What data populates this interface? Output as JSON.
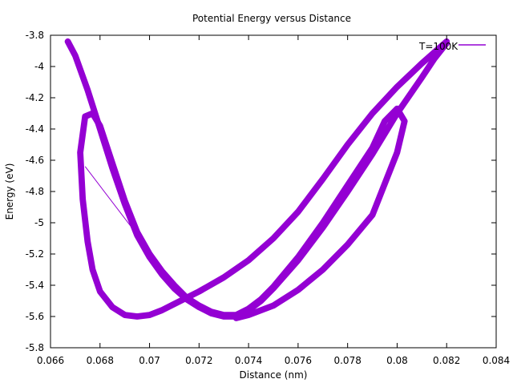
{
  "chart_data": {
    "type": "line",
    "title": "Potential Energy versus Distance",
    "xlabel": "Distance (nm)",
    "ylabel": "Energy (eV)",
    "xlim": [
      0.066,
      0.084
    ],
    "ylim": [
      -5.8,
      -3.8
    ],
    "x_ticks": [
      0.066,
      0.068,
      0.07,
      0.072,
      0.074,
      0.076,
      0.078,
      0.08,
      0.082,
      0.084
    ],
    "y_ticks": [
      -5.8,
      -5.6,
      -5.4,
      -5.2,
      -5.0,
      -4.8,
      -4.6,
      -4.4,
      -4.2,
      -4.0,
      -3.8
    ],
    "x_tick_labels": [
      "0.066",
      "0.068",
      "0.07",
      "0.072",
      "0.074",
      "0.076",
      "0.078",
      "0.08",
      "0.082",
      "0.084"
    ],
    "y_tick_labels": [
      "-5.8",
      "-5.6",
      "-5.4",
      "-5.2",
      "-5",
      "-4.8",
      "-4.6",
      "-4.4",
      "-4.2",
      "-4",
      "-3.8"
    ],
    "grid": false,
    "legend_position": "top-right",
    "series": [
      {
        "name": "T=100K",
        "color": "#9400d3",
        "band_width": 0.04,
        "loops": [
          {
            "points": [
              [
                0.0667,
                -3.84
              ],
              [
                0.067,
                -3.93
              ],
              [
                0.0675,
                -4.15
              ],
              [
                0.068,
                -4.4
              ],
              [
                0.0685,
                -4.65
              ],
              [
                0.069,
                -4.88
              ],
              [
                0.0695,
                -5.08
              ],
              [
                0.07,
                -5.22
              ],
              [
                0.0705,
                -5.33
              ],
              [
                0.071,
                -5.42
              ],
              [
                0.0715,
                -5.49
              ],
              [
                0.072,
                -5.54
              ],
              [
                0.0725,
                -5.58
              ],
              [
                0.073,
                -5.6
              ],
              [
                0.0735,
                -5.6
              ],
              [
                0.074,
                -5.56
              ],
              [
                0.0745,
                -5.5
              ],
              [
                0.075,
                -5.42
              ],
              [
                0.076,
                -5.24
              ],
              [
                0.077,
                -5.03
              ],
              [
                0.078,
                -4.8
              ],
              [
                0.079,
                -4.56
              ],
              [
                0.08,
                -4.3
              ],
              [
                0.081,
                -4.07
              ],
              [
                0.0815,
                -3.95
              ],
              [
                0.082,
                -3.85
              ]
            ]
          },
          {
            "points": [
              [
                0.082,
                -3.84
              ],
              [
                0.081,
                -3.98
              ],
              [
                0.08,
                -4.13
              ],
              [
                0.079,
                -4.3
              ],
              [
                0.078,
                -4.5
              ],
              [
                0.077,
                -4.72
              ],
              [
                0.076,
                -4.93
              ],
              [
                0.075,
                -5.1
              ],
              [
                0.074,
                -5.24
              ],
              [
                0.073,
                -5.35
              ],
              [
                0.072,
                -5.44
              ],
              [
                0.071,
                -5.52
              ],
              [
                0.0705,
                -5.56
              ],
              [
                0.07,
                -5.59
              ],
              [
                0.0695,
                -5.6
              ],
              [
                0.069,
                -5.59
              ],
              [
                0.0685,
                -5.54
              ],
              [
                0.068,
                -5.44
              ],
              [
                0.0677,
                -5.3
              ],
              [
                0.0675,
                -5.12
              ],
              [
                0.0673,
                -4.85
              ],
              [
                0.0672,
                -4.55
              ],
              [
                0.0674,
                -4.32
              ],
              [
                0.0677,
                -4.3
              ],
              [
                0.068,
                -4.38
              ],
              [
                0.0685,
                -4.62
              ],
              [
                0.069,
                -4.86
              ],
              [
                0.0695,
                -5.06
              ],
              [
                0.07,
                -5.2
              ],
              [
                0.0705,
                -5.31
              ],
              [
                0.071,
                -5.4
              ],
              [
                0.0715,
                -5.48
              ],
              [
                0.072,
                -5.53
              ],
              [
                0.0725,
                -5.57
              ],
              [
                0.073,
                -5.59
              ],
              [
                0.0735,
                -5.59
              ],
              [
                0.074,
                -5.55
              ],
              [
                0.0745,
                -5.49
              ],
              [
                0.075,
                -5.41
              ],
              [
                0.076,
                -5.22
              ],
              [
                0.077,
                -5.0
              ],
              [
                0.078,
                -4.76
              ],
              [
                0.079,
                -4.52
              ],
              [
                0.0795,
                -4.35
              ],
              [
                0.08,
                -4.27
              ],
              [
                0.0803,
                -4.35
              ],
              [
                0.08,
                -4.55
              ],
              [
                0.0795,
                -4.75
              ],
              [
                0.079,
                -4.95
              ],
              [
                0.078,
                -5.14
              ],
              [
                0.077,
                -5.3
              ],
              [
                0.076,
                -5.43
              ],
              [
                0.075,
                -5.53
              ],
              [
                0.074,
                -5.59
              ],
              [
                0.0735,
                -5.61
              ]
            ]
          }
        ],
        "segment": [
          [
            0.0674,
            -4.64
          ],
          [
            0.07,
            -5.18
          ]
        ]
      }
    ]
  }
}
